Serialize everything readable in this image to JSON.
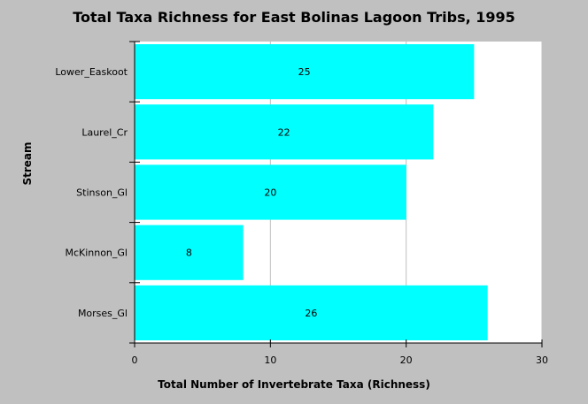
{
  "chart_data": {
    "type": "bar",
    "orientation": "horizontal",
    "title": "Total Taxa Richness for East Bolinas Lagoon Tribs, 1995",
    "xlabel": "Total Number of Invertebrate Taxa (Richness)",
    "ylabel": "Stream",
    "categories": [
      "Lower_Easkoot",
      "Laurel_Cr",
      "Stinson_Gl",
      "McKinnon_Gl",
      "Morses_Gl"
    ],
    "values": [
      25,
      22,
      20,
      8,
      26
    ],
    "value_labels": [
      "25",
      "22",
      "20",
      "8",
      "26"
    ],
    "xlim": [
      0,
      30
    ],
    "xticks": [
      0,
      10,
      20,
      30
    ],
    "xtick_labels": [
      "0",
      "10",
      "20",
      "30"
    ],
    "grid": "vertical",
    "legend": "none",
    "colors": {
      "bar": "#00ffff",
      "background": "#c0c0c0",
      "plot_area": "#ffffff",
      "gridline": "#c0c0c0",
      "axis": "#000000"
    }
  }
}
